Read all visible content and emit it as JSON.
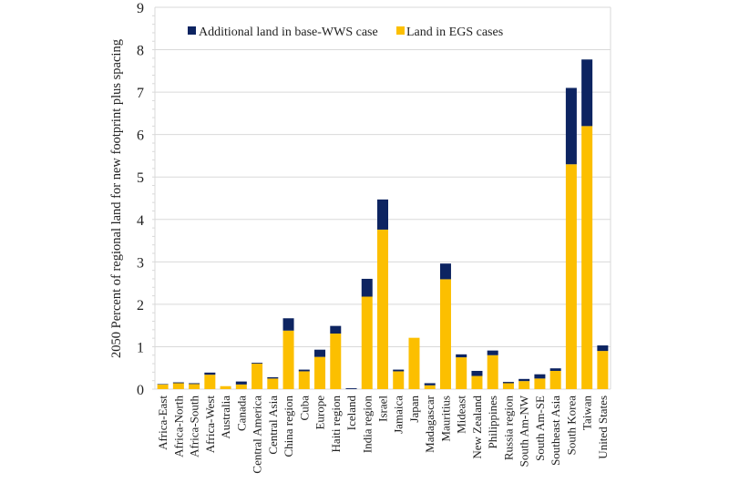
{
  "chart_data": {
    "type": "bar",
    "stacked": true,
    "title": "",
    "xlabel": "",
    "ylabel": "2050 Percent of regional land for new footprint plus spacing",
    "ylim": [
      0,
      9
    ],
    "yticks": [
      0,
      1,
      2,
      3,
      4,
      5,
      6,
      7,
      8,
      9
    ],
    "grid": true,
    "legend_position": "top-left",
    "categories": [
      "Africa-East",
      "Africa-North",
      "Africa-South",
      "Africa-West",
      "Australia",
      "Canada",
      "Central America",
      "Central Asia",
      "China region",
      "Cuba",
      "Europe",
      "Haiti region",
      "Iceland",
      "India region",
      "Israel",
      "Jamaica",
      "Japan",
      "Madagascar",
      "Mauritius",
      "Mideast",
      "New Zealand",
      "Philippines",
      "Russia region",
      "South Am-NW",
      "South Am-SE",
      "Southeast Asia",
      "South Korea",
      "Taiwan",
      "United States"
    ],
    "series": [
      {
        "name": "Land in EGS cases",
        "color": "#fcbf00",
        "values": [
          0.11,
          0.14,
          0.12,
          0.34,
          0.07,
          0.11,
          0.6,
          0.25,
          1.38,
          0.42,
          0.76,
          1.31,
          0.0,
          2.18,
          3.76,
          0.42,
          1.21,
          0.09,
          2.59,
          0.75,
          0.31,
          0.8,
          0.14,
          0.19,
          0.25,
          0.43,
          5.3,
          6.2,
          0.9
        ]
      },
      {
        "name": "Additional land in base-WWS case",
        "color": "#0d2461",
        "values": [
          0.01,
          0.02,
          0.02,
          0.05,
          0.0,
          0.07,
          0.02,
          0.03,
          0.29,
          0.04,
          0.17,
          0.18,
          0.02,
          0.42,
          0.71,
          0.04,
          0.0,
          0.05,
          0.37,
          0.07,
          0.12,
          0.11,
          0.03,
          0.05,
          0.1,
          0.06,
          1.8,
          1.57,
          0.13
        ]
      }
    ],
    "legend": [
      {
        "label": "Additional land in base-WWS case",
        "color": "#0d2461"
      },
      {
        "label": "Land in EGS cases",
        "color": "#fcbf00"
      }
    ]
  },
  "style": {
    "grid_color": "#d9d9d9",
    "axis_color": "#d9d9d9"
  }
}
